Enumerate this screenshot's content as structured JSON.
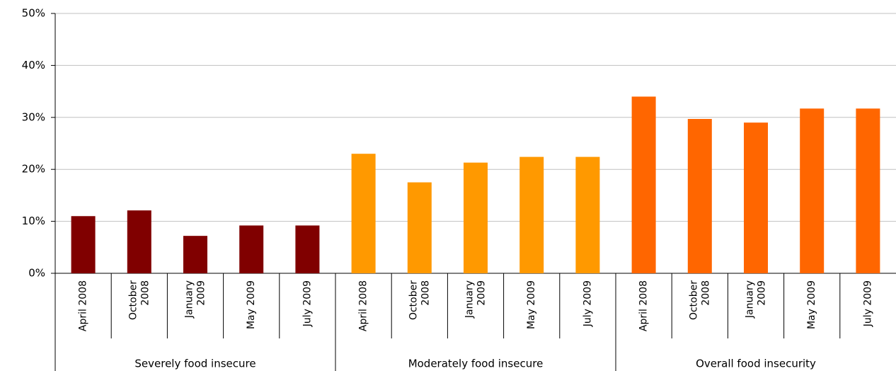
{
  "chart_data": {
    "type": "bar",
    "categories": [
      "April 2008",
      "October 2008",
      "January 2009",
      "May 2009",
      "July 2009"
    ],
    "series": [
      {
        "name": "Severely food insecure",
        "color": "#800000",
        "values": [
          11,
          12.1,
          7.2,
          9.2,
          9.2
        ]
      },
      {
        "name": "Moderately food insecure",
        "color": "#ff9900",
        "values": [
          23,
          17.5,
          21.3,
          22.4,
          22.4
        ]
      },
      {
        "name": "Overall food insecurity",
        "color": "#ff6600",
        "values": [
          34,
          29.7,
          29,
          31.7,
          31.7
        ]
      }
    ],
    "ylim": [
      0,
      50
    ],
    "yticks": [
      {
        "value": 0,
        "label": "0%"
      },
      {
        "value": 10,
        "label": "10%"
      },
      {
        "value": 20,
        "label": "20%"
      },
      {
        "value": 30,
        "label": "30%"
      },
      {
        "value": 40,
        "label": "40%"
      },
      {
        "value": 50,
        "label": "50%"
      }
    ],
    "grid": true
  }
}
